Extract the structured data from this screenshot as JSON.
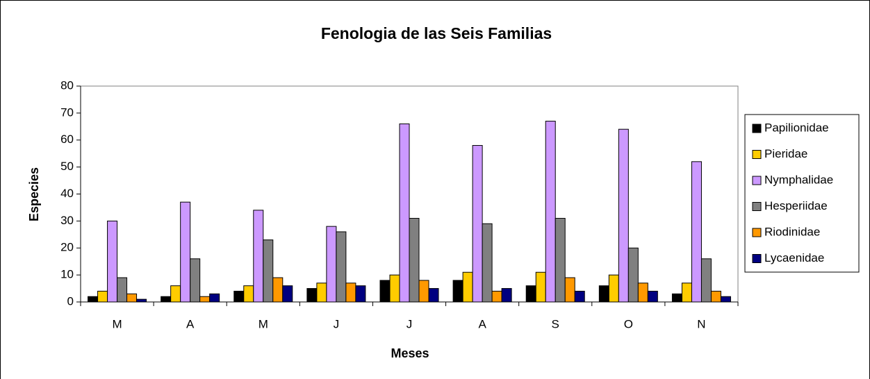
{
  "chart_data": {
    "type": "bar",
    "title": "Fenologia de las Seis Familias",
    "x_label": "Meses",
    "y_label": "Especies",
    "categories": [
      "M",
      "A",
      "M",
      "J",
      "J",
      "A",
      "S",
      "O",
      "N"
    ],
    "series": [
      {
        "name": "Papilionidae",
        "color": "#000000",
        "values": [
          2,
          2,
          4,
          5,
          8,
          8,
          6,
          6,
          3
        ]
      },
      {
        "name": "Pieridae",
        "color": "#ffcc00",
        "values": [
          4,
          6,
          6,
          7,
          10,
          11,
          11,
          10,
          7
        ]
      },
      {
        "name": "Nymphalidae",
        "color": "#cc99ff",
        "values": [
          30,
          37,
          34,
          28,
          66,
          58,
          67,
          64,
          52
        ]
      },
      {
        "name": "Hesperiidae",
        "color": "#808080",
        "values": [
          9,
          16,
          23,
          26,
          31,
          29,
          31,
          20,
          16
        ]
      },
      {
        "name": "Riodinidae",
        "color": "#ff9900",
        "values": [
          3,
          2,
          9,
          7,
          8,
          4,
          9,
          7,
          4
        ]
      },
      {
        "name": "Lycaenidae",
        "color": "#000080",
        "values": [
          1,
          3,
          6,
          6,
          5,
          5,
          4,
          4,
          2
        ]
      }
    ],
    "ylim": [
      0,
      80
    ],
    "yticks": [
      0,
      10,
      20,
      30,
      40,
      50,
      60,
      70,
      80
    ],
    "legend": "right"
  }
}
